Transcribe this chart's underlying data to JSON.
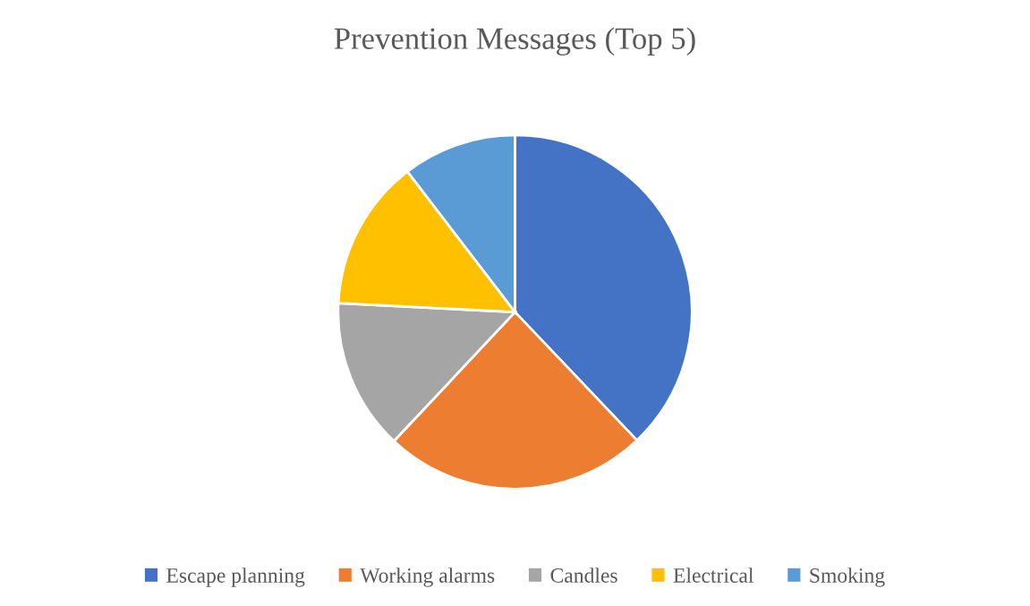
{
  "chart_data": {
    "type": "pie",
    "title": "Prevention Messages (Top 5)",
    "categories": [
      "Escape planning",
      "Working alarms",
      "Candles",
      "Electrical",
      "Smoking"
    ],
    "values": [
      37.9,
      24.1,
      13.8,
      13.8,
      10.4
    ],
    "colors": [
      "#4472c4",
      "#ed7d31",
      "#a5a5a5",
      "#ffc000",
      "#5b9bd5"
    ],
    "legend": "bottom"
  }
}
